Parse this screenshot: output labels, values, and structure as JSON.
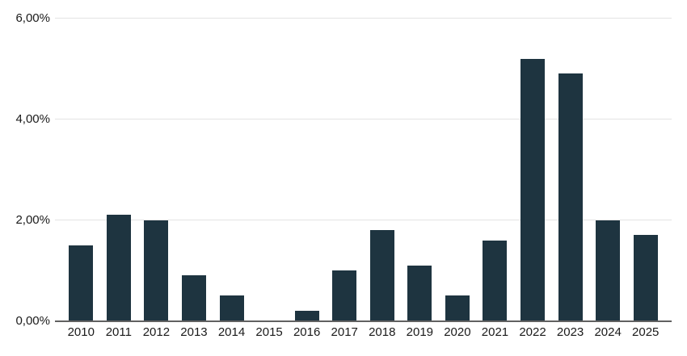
{
  "chart_data": {
    "type": "bar",
    "title": "",
    "xlabel": "",
    "ylabel": "",
    "categories": [
      "2010",
      "2011",
      "2012",
      "2013",
      "2014",
      "2015",
      "2016",
      "2017",
      "2018",
      "2019",
      "2020",
      "2021",
      "2022",
      "2023",
      "2024",
      "2025"
    ],
    "values": [
      1.5,
      2.1,
      2.0,
      0.9,
      0.5,
      0.0,
      0.2,
      1.0,
      1.8,
      1.1,
      0.5,
      1.6,
      5.2,
      4.9,
      2.0,
      1.7
    ],
    "value_unit": "%",
    "ylim": [
      0,
      6
    ],
    "y_ticks": [
      0,
      2,
      4,
      6
    ],
    "y_tick_labels": [
      "0,00%",
      "2,00%",
      "4,00%",
      "6,00%"
    ],
    "grid": true,
    "legend": "none",
    "colors": {
      "bar": "#1e3440",
      "gridline": "#e3e3e3",
      "axis_line": "#616161",
      "label_text": "#1a1a1a",
      "background": "#ffffff"
    }
  }
}
